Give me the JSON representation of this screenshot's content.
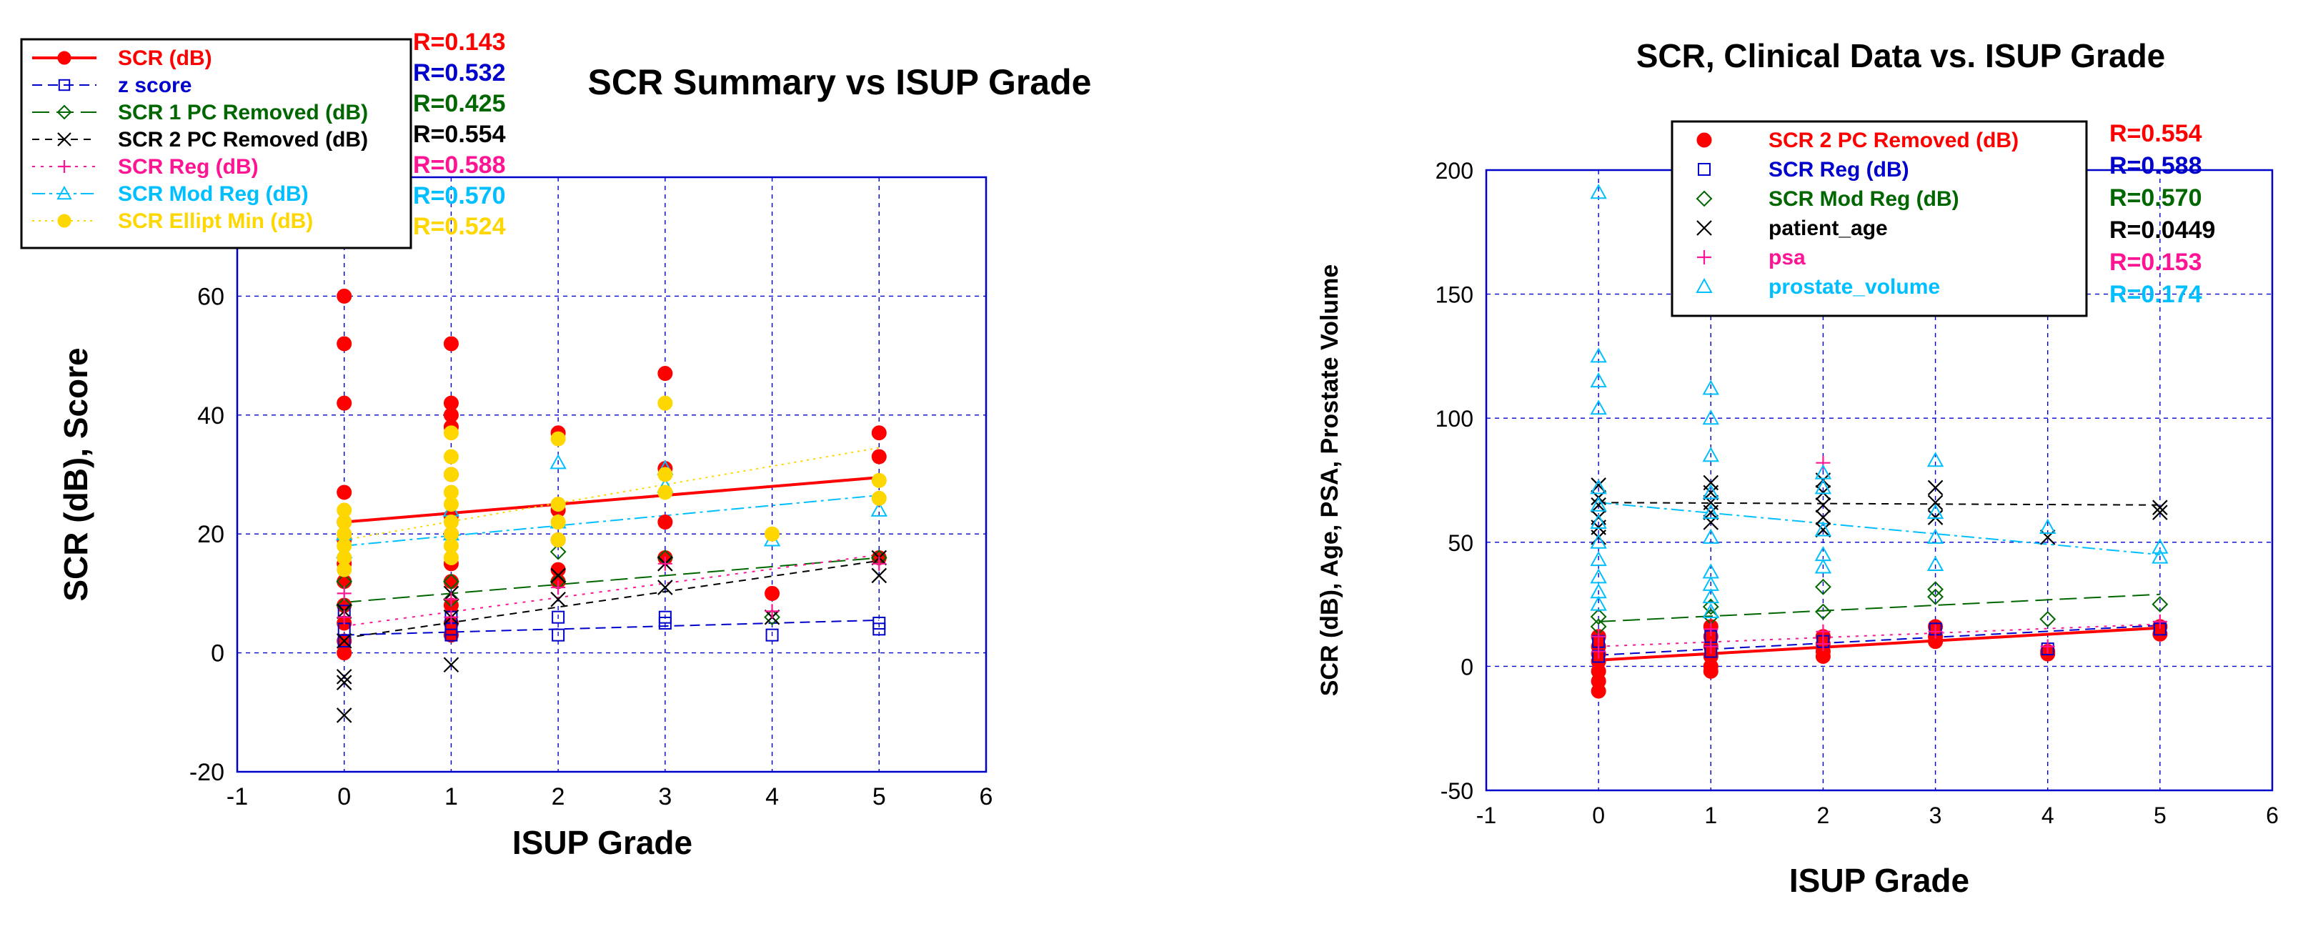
{
  "chart_data": [
    {
      "type": "scatter",
      "title": "SCR Summary vs ISUP Grade",
      "xlabel": "ISUP Grade",
      "ylabel": "SCR (dB), Score",
      "xlim": [
        -1,
        6
      ],
      "ylim": [
        -20,
        80
      ],
      "xticks": [
        "-1",
        "0",
        "1",
        "2",
        "3",
        "4",
        "5",
        "6"
      ],
      "yticks": [
        "-20",
        "0",
        "20",
        "40",
        "60"
      ],
      "grid": true,
      "legend_position": "top-left",
      "series": [
        {
          "name": "SCR (dB)",
          "color": "#ff0000",
          "marker": "filled-circle",
          "r_label": "R=0.143",
          "points": [
            [
              0,
              60
            ],
            [
              0,
              52
            ],
            [
              0,
              42
            ],
            [
              0,
              27
            ],
            [
              0,
              22
            ],
            [
              0,
              19
            ],
            [
              0,
              15
            ],
            [
              0,
              12
            ],
            [
              0,
              8
            ],
            [
              0,
              5
            ],
            [
              0,
              2
            ],
            [
              0,
              0
            ],
            [
              1,
              52
            ],
            [
              1,
              42
            ],
            [
              1,
              40
            ],
            [
              1,
              38
            ],
            [
              1,
              30
            ],
            [
              1,
              23
            ],
            [
              1,
              20
            ],
            [
              1,
              15
            ],
            [
              1,
              12
            ],
            [
              1,
              8
            ],
            [
              1,
              5
            ],
            [
              1,
              3
            ],
            [
              2,
              37
            ],
            [
              2,
              24
            ],
            [
              2,
              19
            ],
            [
              2,
              14
            ],
            [
              2,
              12
            ],
            [
              3,
              47
            ],
            [
              3,
              31
            ],
            [
              3,
              22
            ],
            [
              3,
              16
            ],
            [
              4,
              10
            ],
            [
              5,
              37
            ],
            [
              5,
              33
            ],
            [
              5,
              16
            ]
          ],
          "fit": [
            [
              0,
              22
            ],
            [
              5,
              29.5
            ]
          ]
        },
        {
          "name": "z score",
          "color": "#0000cc",
          "marker": "open-square",
          "r_label": "R=0.532",
          "points": [
            [
              0,
              7
            ],
            [
              0,
              4
            ],
            [
              0,
              2
            ],
            [
              1,
              6
            ],
            [
              1,
              4
            ],
            [
              1,
              3
            ],
            [
              2,
              6
            ],
            [
              2,
              3
            ],
            [
              3,
              6
            ],
            [
              3,
              5
            ],
            [
              4,
              3
            ],
            [
              5,
              5
            ],
            [
              5,
              4
            ]
          ],
          "fit": [
            [
              0,
              3
            ],
            [
              5,
              5.5
            ]
          ]
        },
        {
          "name": "SCR 1 PC Removed (dB)",
          "color": "#006600",
          "marker": "open-diamond",
          "r_label": "R=0.425",
          "points": [
            [
              0,
              12
            ],
            [
              0,
              8
            ],
            [
              1,
              12
            ],
            [
              1,
              9
            ],
            [
              2,
              17
            ],
            [
              2,
              12
            ],
            [
              3,
              16
            ],
            [
              4,
              6
            ],
            [
              5,
              16
            ]
          ],
          "fit": [
            [
              0,
              8.5
            ],
            [
              5,
              16
            ]
          ]
        },
        {
          "name": "SCR 2 PC Removed (dB)",
          "color": "#000000",
          "marker": "x",
          "r_label": "R=0.554",
          "points": [
            [
              0,
              7
            ],
            [
              0,
              2
            ],
            [
              0,
              -4
            ],
            [
              0,
              -5
            ],
            [
              0,
              -10.5
            ],
            [
              1,
              10
            ],
            [
              1,
              6
            ],
            [
              1,
              -2
            ],
            [
              2,
              13
            ],
            [
              2,
              9
            ],
            [
              3,
              15
            ],
            [
              3,
              11
            ],
            [
              4,
              6
            ],
            [
              5,
              16
            ],
            [
              5,
              13
            ]
          ],
          "fit": [
            [
              0,
              2.5
            ],
            [
              5,
              15.5
            ]
          ]
        },
        {
          "name": "SCR Reg (dB)",
          "color": "#ff1493",
          "marker": "plus",
          "r_label": "R=0.588",
          "points": [
            [
              0,
              10
            ],
            [
              0,
              6
            ],
            [
              1,
              9
            ],
            [
              1,
              6
            ],
            [
              2,
              11
            ],
            [
              3,
              15
            ],
            [
              4,
              7
            ],
            [
              5,
              15
            ]
          ],
          "fit": [
            [
              0,
              4.5
            ],
            [
              5,
              16.5
            ]
          ]
        },
        {
          "name": "SCR Mod Reg (dB)",
          "color": "#00bfff",
          "marker": "open-triangle",
          "r_label": "R=0.570",
          "points": [
            [
              0,
              20
            ],
            [
              0,
              17
            ],
            [
              1,
              24
            ],
            [
              1,
              20
            ],
            [
              2,
              32
            ],
            [
              2,
              22
            ],
            [
              3,
              31
            ],
            [
              3,
              28
            ],
            [
              4,
              19
            ],
            [
              5,
              24
            ]
          ],
          "fit": [
            [
              0,
              18
            ],
            [
              5,
              26.5
            ]
          ]
        },
        {
          "name": "SCR Ellipt Min (dB)",
          "color": "#ffd700",
          "marker": "filled-circle",
          "r_label": "R=0.524",
          "points": [
            [
              0,
              24
            ],
            [
              0,
              22
            ],
            [
              0,
              20
            ],
            [
              0,
              18
            ],
            [
              0,
              16
            ],
            [
              0,
              14
            ],
            [
              1,
              37
            ],
            [
              1,
              33
            ],
            [
              1,
              30
            ],
            [
              1,
              27
            ],
            [
              1,
              25
            ],
            [
              1,
              22
            ],
            [
              1,
              20
            ],
            [
              1,
              18
            ],
            [
              1,
              16
            ],
            [
              2,
              36
            ],
            [
              2,
              25
            ],
            [
              2,
              22
            ],
            [
              2,
              19
            ],
            [
              3,
              42
            ],
            [
              3,
              30
            ],
            [
              3,
              27
            ],
            [
              4,
              20
            ],
            [
              5,
              29
            ],
            [
              5,
              26
            ]
          ],
          "fit": [
            [
              0,
              19
            ],
            [
              5,
              34.5
            ]
          ]
        }
      ]
    },
    {
      "type": "scatter",
      "title": "SCR, Clinical Data vs. ISUP Grade",
      "xlabel": "ISUP Grade",
      "ylabel": "SCR (dB), Age, PSA, Prostate Volume",
      "xlim": [
        -1,
        6
      ],
      "ylim": [
        -50,
        200
      ],
      "xticks": [
        "-1",
        "0",
        "1",
        "2",
        "3",
        "4",
        "5",
        "6"
      ],
      "yticks": [
        "-50",
        "0",
        "50",
        "100",
        "150",
        "200"
      ],
      "grid": true,
      "legend_position": "top-right",
      "series": [
        {
          "name": "SCR 2 PC Removed (dB)",
          "color": "#ff0000",
          "marker": "filled-circle",
          "r_label": "R=0.554",
          "points": [
            [
              0,
              12
            ],
            [
              0,
              8
            ],
            [
              0,
              5
            ],
            [
              0,
              2
            ],
            [
              0,
              -2
            ],
            [
              0,
              -6
            ],
            [
              0,
              -10
            ],
            [
              1,
              16
            ],
            [
              1,
              12
            ],
            [
              1,
              8
            ],
            [
              1,
              4
            ],
            [
              1,
              0
            ],
            [
              1,
              -2
            ],
            [
              2,
              12
            ],
            [
              2,
              9
            ],
            [
              2,
              6
            ],
            [
              2,
              4
            ],
            [
              3,
              16
            ],
            [
              3,
              12
            ],
            [
              3,
              10
            ],
            [
              4,
              6
            ],
            [
              4,
              5
            ],
            [
              5,
              16
            ],
            [
              5,
              13
            ]
          ],
          "fit": [
            [
              0,
              2.5
            ],
            [
              5,
              15.5
            ]
          ]
        },
        {
          "name": "SCR Reg (dB)",
          "color": "#0000cc",
          "marker": "open-square",
          "r_label": "R=0.588",
          "points": [
            [
              0,
              10
            ],
            [
              0,
              4
            ],
            [
              1,
              12
            ],
            [
              1,
              6
            ],
            [
              2,
              10
            ],
            [
              3,
              15
            ],
            [
              4,
              7
            ],
            [
              5,
              15
            ]
          ],
          "fit": [
            [
              0,
              4.5
            ],
            [
              5,
              16.5
            ]
          ]
        },
        {
          "name": "SCR Mod Reg (dB)",
          "color": "#006600",
          "marker": "open-diamond",
          "r_label": "R=0.570",
          "points": [
            [
              0,
              20
            ],
            [
              0,
              16
            ],
            [
              1,
              24
            ],
            [
              1,
              20
            ],
            [
              2,
              32
            ],
            [
              2,
              22
            ],
            [
              3,
              31
            ],
            [
              3,
              28
            ],
            [
              4,
              19
            ],
            [
              5,
              25
            ]
          ],
          "fit": [
            [
              0,
              18
            ],
            [
              5,
              29
            ]
          ]
        },
        {
          "name": "patient_age",
          "color": "#000000",
          "marker": "x",
          "r_label": "R=0.0449",
          "points": [
            [
              0,
              73
            ],
            [
              0,
              68
            ],
            [
              0,
              65
            ],
            [
              0,
              60
            ],
            [
              0,
              56
            ],
            [
              0,
              52
            ],
            [
              1,
              74
            ],
            [
              1,
              70
            ],
            [
              1,
              66
            ],
            [
              1,
              62
            ],
            [
              1,
              58
            ],
            [
              2,
              75
            ],
            [
              2,
              70
            ],
            [
              2,
              65
            ],
            [
              2,
              60
            ],
            [
              2,
              55
            ],
            [
              3,
              72
            ],
            [
              3,
              66
            ],
            [
              3,
              60
            ],
            [
              4,
              52
            ],
            [
              5,
              64
            ],
            [
              5,
              62
            ]
          ],
          "fit": [
            [
              0,
              66
            ],
            [
              5,
              65
            ]
          ]
        },
        {
          "name": "psa",
          "color": "#ff1493",
          "marker": "plus",
          "r_label": "R=0.153",
          "points": [
            [
              0,
              12
            ],
            [
              0,
              6
            ],
            [
              1,
              15
            ],
            [
              1,
              8
            ],
            [
              2,
              82
            ],
            [
              2,
              14
            ],
            [
              2,
              9
            ],
            [
              3,
              14
            ],
            [
              4,
              8
            ],
            [
              5,
              18
            ]
          ],
          "fit": [
            [
              0,
              8
            ],
            [
              5,
              17
            ]
          ]
        },
        {
          "name": "prostate_volume",
          "color": "#00bfff",
          "marker": "open-triangle",
          "r_label": "R=0.174",
          "points": [
            [
              0,
              191
            ],
            [
              0,
              125
            ],
            [
              0,
              115
            ],
            [
              0,
              104
            ],
            [
              0,
              72
            ],
            [
              0,
              65
            ],
            [
              0,
              58
            ],
            [
              0,
              50
            ],
            [
              0,
              43
            ],
            [
              0,
              36
            ],
            [
              0,
              30
            ],
            [
              0,
              25
            ],
            [
              1,
              112
            ],
            [
              1,
              100
            ],
            [
              1,
              85
            ],
            [
              1,
              70
            ],
            [
              1,
              62
            ],
            [
              1,
              52
            ],
            [
              1,
              38
            ],
            [
              1,
              33
            ],
            [
              1,
              28
            ],
            [
              1,
              22
            ],
            [
              2,
              78
            ],
            [
              2,
              72
            ],
            [
              2,
              55
            ],
            [
              2,
              45
            ],
            [
              2,
              40
            ],
            [
              3,
              83
            ],
            [
              3,
              62
            ],
            [
              3,
              52
            ],
            [
              3,
              41
            ],
            [
              4,
              56
            ],
            [
              5,
              48
            ],
            [
              5,
              44
            ]
          ],
          "fit": [
            [
              0,
              66
            ],
            [
              5,
              45
            ]
          ]
        }
      ]
    }
  ]
}
